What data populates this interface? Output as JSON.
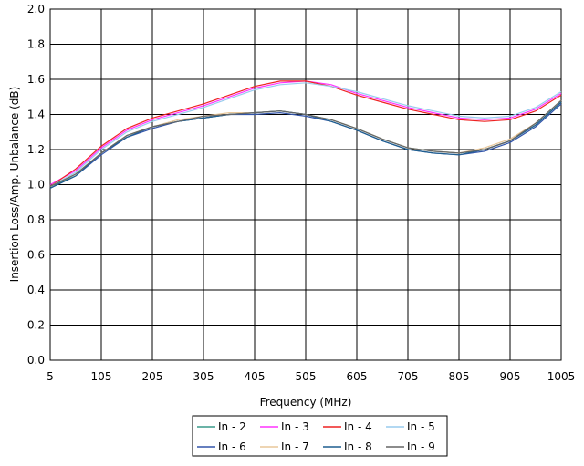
{
  "chart_data": {
    "type": "line",
    "title": "",
    "xlabel": "Frequency (MHz)",
    "ylabel": "Insertion Loss/Amp. Unbalance (dB)",
    "xlim": [
      5,
      1005
    ],
    "ylim": [
      0.0,
      2.0
    ],
    "x_ticks": [
      "5",
      "105",
      "205",
      "305",
      "405",
      "505",
      "605",
      "705",
      "805",
      "905",
      "1005"
    ],
    "y_ticks": [
      "0.0",
      "0.2",
      "0.4",
      "0.6",
      "0.8",
      "1.0",
      "1.2",
      "1.4",
      "1.6",
      "1.8",
      "2.0"
    ],
    "grid": true,
    "legend_position": "bottom",
    "x": [
      5,
      55,
      105,
      155,
      205,
      255,
      305,
      355,
      405,
      455,
      505,
      555,
      605,
      655,
      705,
      755,
      805,
      855,
      905,
      955,
      1005
    ],
    "series": [
      {
        "name": "In - 2",
        "color": "#3a9a8a",
        "values": [
          0.98,
          1.06,
          1.18,
          1.28,
          1.33,
          1.36,
          1.38,
          1.4,
          1.41,
          1.42,
          1.4,
          1.37,
          1.32,
          1.26,
          1.21,
          1.19,
          1.18,
          1.2,
          1.25,
          1.34,
          1.47
        ]
      },
      {
        "name": "In - 3",
        "color": "#ff33ff",
        "values": [
          1.0,
          1.08,
          1.21,
          1.31,
          1.37,
          1.41,
          1.45,
          1.5,
          1.55,
          1.58,
          1.59,
          1.57,
          1.52,
          1.48,
          1.44,
          1.41,
          1.38,
          1.37,
          1.38,
          1.43,
          1.52
        ]
      },
      {
        "name": "In - 4",
        "color": "#ee2222",
        "values": [
          0.99,
          1.09,
          1.22,
          1.32,
          1.38,
          1.42,
          1.46,
          1.51,
          1.56,
          1.59,
          1.59,
          1.56,
          1.51,
          1.47,
          1.43,
          1.4,
          1.37,
          1.36,
          1.37,
          1.42,
          1.51
        ]
      },
      {
        "name": "In - 5",
        "color": "#99ccee",
        "values": [
          0.99,
          1.07,
          1.2,
          1.3,
          1.36,
          1.4,
          1.44,
          1.49,
          1.54,
          1.57,
          1.58,
          1.56,
          1.53,
          1.49,
          1.45,
          1.42,
          1.39,
          1.38,
          1.39,
          1.44,
          1.53
        ]
      },
      {
        "name": "In - 6",
        "color": "#3355aa",
        "values": [
          0.98,
          1.05,
          1.17,
          1.27,
          1.32,
          1.36,
          1.38,
          1.4,
          1.4,
          1.41,
          1.39,
          1.36,
          1.31,
          1.25,
          1.2,
          1.18,
          1.17,
          1.19,
          1.24,
          1.33,
          1.46
        ]
      },
      {
        "name": "In - 7",
        "color": "#e8c79a",
        "values": [
          0.99,
          1.06,
          1.18,
          1.28,
          1.33,
          1.37,
          1.39,
          1.41,
          1.41,
          1.42,
          1.4,
          1.37,
          1.32,
          1.26,
          1.21,
          1.19,
          1.18,
          1.21,
          1.26,
          1.35,
          1.48
        ]
      },
      {
        "name": "In - 8",
        "color": "#1f5f8f",
        "values": [
          0.98,
          1.05,
          1.18,
          1.27,
          1.33,
          1.36,
          1.38,
          1.4,
          1.41,
          1.42,
          1.4,
          1.36,
          1.31,
          1.25,
          1.2,
          1.18,
          1.17,
          1.2,
          1.25,
          1.34,
          1.47
        ]
      },
      {
        "name": "In - 9",
        "color": "#666666",
        "values": [
          0.99,
          1.06,
          1.18,
          1.28,
          1.33,
          1.36,
          1.39,
          1.4,
          1.41,
          1.42,
          1.4,
          1.37,
          1.32,
          1.26,
          1.21,
          1.19,
          1.18,
          1.2,
          1.25,
          1.35,
          1.48
        ]
      }
    ]
  }
}
